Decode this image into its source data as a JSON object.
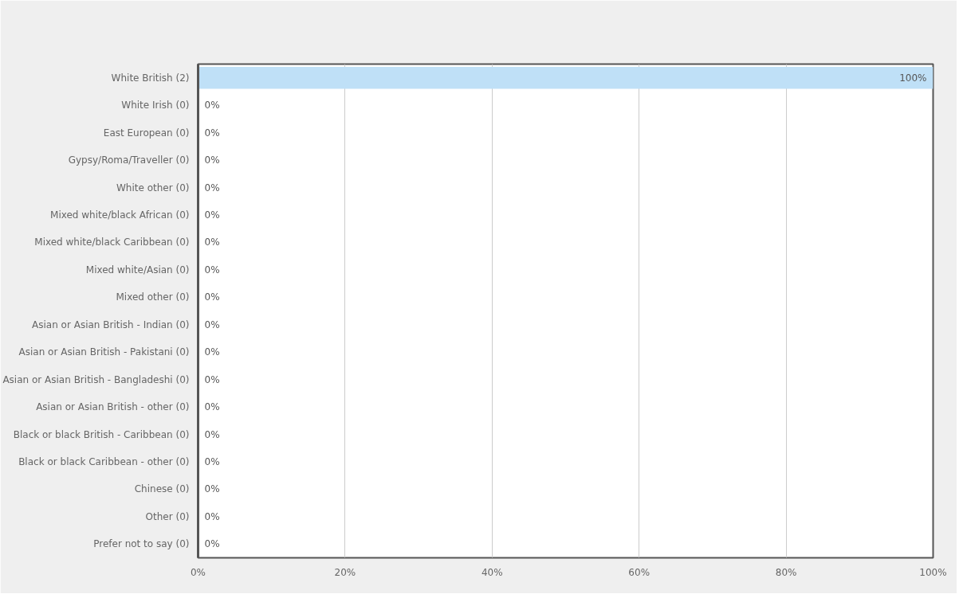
{
  "chart_data": {
    "type": "bar",
    "orientation": "horizontal",
    "categories": [
      "White British (2)",
      "White Irish (0)",
      "East European (0)",
      "Gypsy/Roma/Traveller (0)",
      "White other (0)",
      "Mixed white/black African (0)",
      "Mixed white/black Caribbean (0)",
      "Mixed white/Asian (0)",
      "Mixed other (0)",
      "Asian or Asian British - Indian (0)",
      "Asian or Asian British - Pakistani (0)",
      "Asian or Asian British - Bangladeshi (0)",
      "Asian or Asian British - other (0)",
      "Black or black British - Caribbean (0)",
      "Black or black Caribbean - other (0)",
      "Chinese (0)",
      "Other (0)",
      "Prefer not to say (0)"
    ],
    "values": [
      100,
      0,
      0,
      0,
      0,
      0,
      0,
      0,
      0,
      0,
      0,
      0,
      0,
      0,
      0,
      0,
      0,
      0
    ],
    "value_labels": [
      "100%",
      "0%",
      "0%",
      "0%",
      "0%",
      "0%",
      "0%",
      "0%",
      "0%",
      "0%",
      "0%",
      "0%",
      "0%",
      "0%",
      "0%",
      "0%",
      "0%",
      "0%"
    ],
    "color": "#bfe0f7",
    "xlim": [
      0,
      100
    ],
    "xticks": [
      {
        "value": 0,
        "label": "0%"
      },
      {
        "value": 20,
        "label": "20%"
      },
      {
        "value": 40,
        "label": "40%"
      },
      {
        "value": 60,
        "label": "60%"
      },
      {
        "value": 80,
        "label": "80%"
      },
      {
        "value": 100,
        "label": "100%"
      }
    ],
    "grid": "x"
  }
}
